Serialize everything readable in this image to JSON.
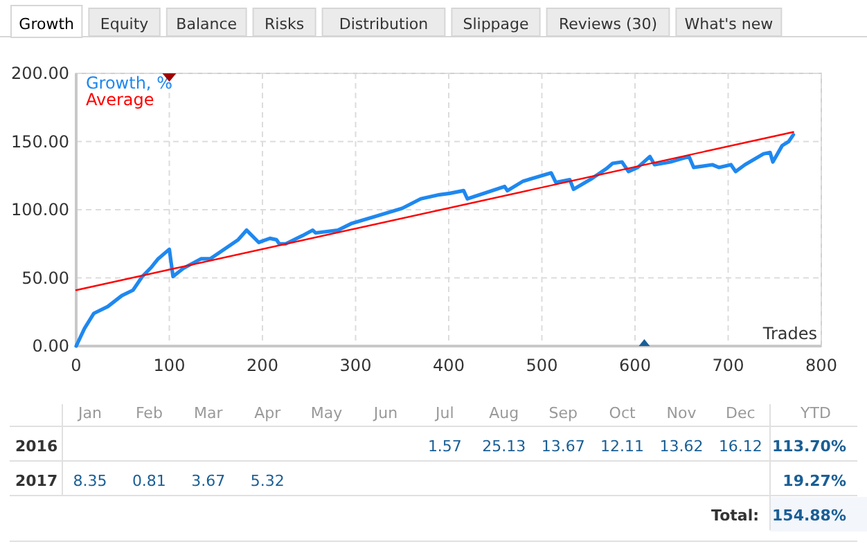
{
  "chart_data": [
    {
      "type": "other",
      "categories": [
        "Growth",
        "Equity",
        "Balance",
        "Risks",
        "Distribution",
        "Slippage",
        "Reviews (30)",
        "What's new"
      ]
    },
    {
      "type": "line",
      "xlabel": "Trades",
      "legend": "top left",
      "grid": true,
      "xlim": [
        0,
        800
      ],
      "xticks": [
        0,
        100,
        200,
        300,
        400,
        500,
        600,
        700,
        800
      ],
      "ylim": [
        0,
        200
      ],
      "yticks": [
        {
          "value": 0,
          "label": "0.00"
        },
        {
          "value": 50,
          "label": "50.00"
        },
        {
          "value": 100,
          "label": "100.00"
        },
        {
          "value": 150,
          "label": "150.00"
        },
        {
          "value": 200,
          "label": "200.00"
        }
      ],
      "series": [
        {
          "name": "Growth, %",
          "color": "#1e88f0",
          "x": [
            0,
            9,
            19,
            34,
            49,
            61,
            71,
            81,
            88,
            100,
            104,
            115,
            134,
            144,
            174,
            183,
            196,
            208,
            215,
            218,
            225,
            243,
            254,
            257,
            281,
            296,
            321,
            350,
            370,
            390,
            401,
            416,
            420,
            460,
            463,
            480,
            510,
            515,
            530,
            534,
            554,
            569,
            576,
            586,
            591,
            593,
            603,
            616,
            621,
            638,
            648,
            658,
            663,
            683,
            690,
            703,
            708,
            718,
            738,
            745,
            748,
            758,
            765,
            770
          ],
          "values": [
            0,
            13,
            24,
            29,
            37,
            41,
            51,
            58,
            64,
            71,
            51,
            57,
            64,
            64,
            78,
            85,
            76,
            79,
            78,
            75,
            75,
            81,
            85,
            83,
            85,
            90,
            95,
            101,
            108,
            111,
            112,
            114,
            108,
            117,
            114,
            121,
            127,
            120,
            122,
            115,
            123,
            130,
            134,
            135,
            130,
            128,
            131,
            139,
            133,
            135,
            137,
            139,
            131,
            133,
            131,
            133,
            128,
            133,
            141,
            142,
            135,
            147,
            150,
            155
          ]
        },
        {
          "name": "Average",
          "color": "#ff0000",
          "x": [
            0,
            770
          ],
          "values": [
            41,
            157
          ]
        }
      ]
    },
    {
      "type": "other",
      "categories": [
        "Jan",
        "Feb",
        "Mar",
        "Apr",
        "May",
        "Jun",
        "Jul",
        "Aug",
        "Sep",
        "Oct",
        "Nov",
        "Dec",
        "YTD"
      ],
      "y_categories": [
        "2016",
        "2017"
      ],
      "cell_labels": [
        [
          null,
          null,
          null,
          null,
          null,
          null,
          "1.57",
          "25.13",
          "13.67",
          "12.11",
          "13.62",
          "16.12",
          "113.70%"
        ],
        [
          "8.35",
          "0.81",
          "3.67",
          "5.32",
          null,
          null,
          null,
          null,
          null,
          null,
          null,
          null,
          "19.27%"
        ]
      ],
      "annotations": [
        "Total:",
        "154.88%"
      ]
    }
  ]
}
